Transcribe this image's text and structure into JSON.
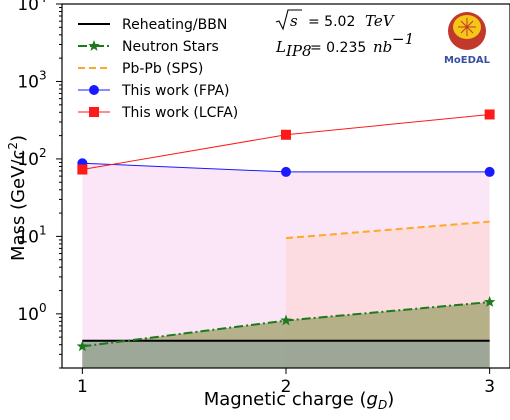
{
  "chart_data": {
    "type": "line",
    "title": "",
    "xlabel": "Magnetic charge (g_D)",
    "ylabel": "Mass (GeV/c²)",
    "y_scale": "log",
    "xlim": [
      0.9,
      3.1
    ],
    "ylim": [
      0.2,
      10000
    ],
    "x_ticks": [
      1,
      2,
      3
    ],
    "y_ticks": [
      1,
      10,
      100,
      1000,
      10000
    ],
    "y_tick_labels": [
      {
        "base": "10",
        "exp": "0"
      },
      {
        "base": "10",
        "exp": "1"
      },
      {
        "base": "10",
        "exp": "2"
      },
      {
        "base": "10",
        "exp": "3"
      },
      {
        "base": "10",
        "exp": "4"
      }
    ],
    "grid": false,
    "legend_position": "top-left",
    "series": [
      {
        "name": "Reheating/BBN",
        "x": [
          1,
          3
        ],
        "y": [
          0.45,
          0.45
        ],
        "color": "#000000",
        "style": "solid",
        "marker": "none",
        "fill": "#9aa69a"
      },
      {
        "name": "Neutron Stars",
        "x": [
          1,
          2,
          3
        ],
        "y": [
          0.38,
          0.82,
          1.42
        ],
        "color": "#1c7a1c",
        "style": "dashdot",
        "marker": "star",
        "fill": "#a8a878"
      },
      {
        "name": "Pb-Pb (SPS)",
        "x": [
          2,
          3
        ],
        "y": [
          9.5,
          15.5
        ],
        "color": "#ffa726",
        "style": "dashed",
        "marker": "none",
        "fill": "#fcd9dc"
      },
      {
        "name": "This work (FPA)",
        "x": [
          1,
          2,
          3
        ],
        "y": [
          88,
          68,
          68
        ],
        "color": "#1a1aff",
        "style": "solid",
        "marker": "circle",
        "fill": "#f9e2f6"
      },
      {
        "name": "This work (LCFA)",
        "x": [
          1,
          2,
          3
        ],
        "y": [
          73,
          205,
          375
        ],
        "color": "#ff1a1a",
        "style": "solid",
        "marker": "square",
        "fill": "none"
      }
    ],
    "annotations": {
      "sqrt_s_symbol": "s",
      "sqrt_s_value": "= 5.02",
      "sqrt_s_unit": "TeV",
      "lumi_symbol": "L",
      "lumi_sub": "IP8",
      "lumi_value": "= 0.235",
      "lumi_unit": "nb",
      "lumi_exp": "−1"
    },
    "logo_text": "MoEDAL",
    "colors": {
      "logo_red": "#c0392b",
      "logo_yellow": "#f5c518",
      "logo_text": "#3a4fa0"
    }
  }
}
